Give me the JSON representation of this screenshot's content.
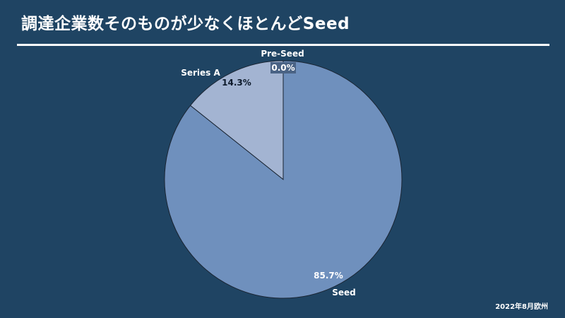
{
  "header": {
    "title": "調達企業数そのものが少なくほとんどSeed"
  },
  "footer": {
    "note": "2022年8月欧州"
  },
  "chart_data": {
    "type": "pie",
    "title": "",
    "slices": [
      {
        "name": "Pre-Seed",
        "value": 0.0,
        "label": "0.0%",
        "color": "#d6dde8"
      },
      {
        "name": "Series A",
        "value": 14.3,
        "label": "14.3%",
        "color": "#a3b4d2"
      },
      {
        "name": "Seed",
        "value": 85.7,
        "label": "85.7%",
        "color": "#6f90bd"
      }
    ],
    "start_at": "top",
    "direction": "counter-clockwise",
    "legend": "none",
    "colors": {
      "background": "#1f4463",
      "outline": "#1a2533",
      "text": "#ffffff",
      "label_box": "#4a6385"
    }
  }
}
